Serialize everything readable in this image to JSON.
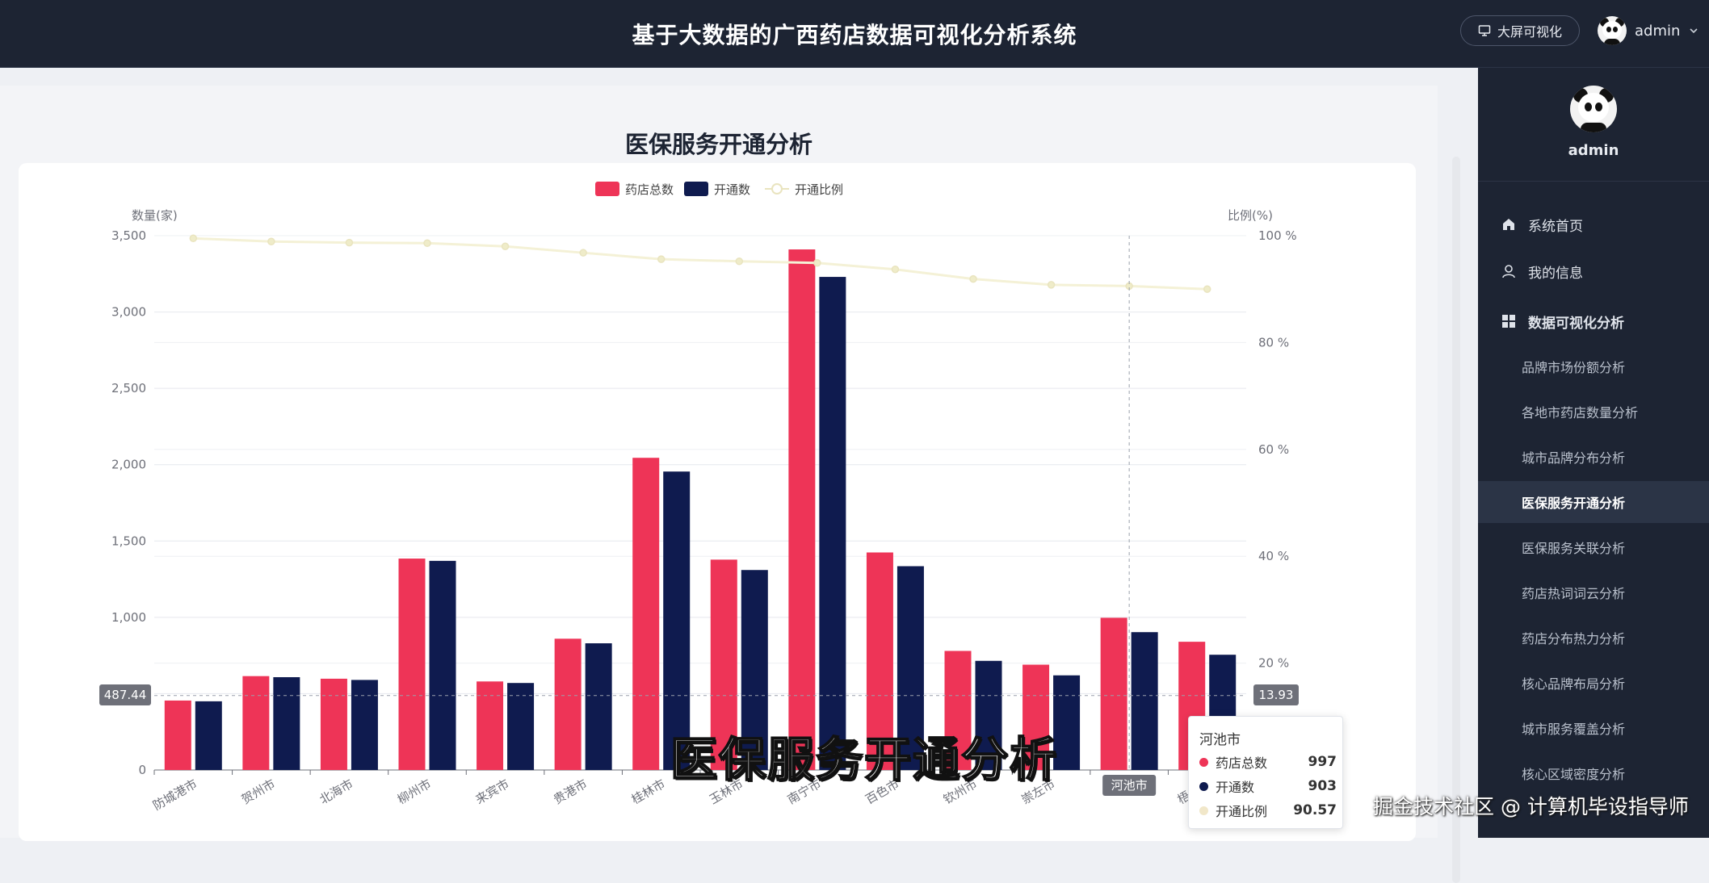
{
  "header": {
    "title": "基于大数据的广西药店数据可视化分析系统",
    "bigscreen_label": "大屏可视化",
    "username": "admin"
  },
  "sidebar": {
    "username": "admin",
    "menu": [
      {
        "label": "系统首页",
        "icon": "home-icon"
      },
      {
        "label": "我的信息",
        "icon": "user-icon"
      },
      {
        "label": "数据可视化分析",
        "icon": "grid-icon"
      }
    ],
    "submenu": [
      {
        "label": "品牌市场份额分析",
        "active": false
      },
      {
        "label": "各地市药店数量分析",
        "active": false
      },
      {
        "label": "城市品牌分布分析",
        "active": false
      },
      {
        "label": "医保服务开通分析",
        "active": true
      },
      {
        "label": "医保服务关联分析",
        "active": false
      },
      {
        "label": "药店热词词云分析",
        "active": false
      },
      {
        "label": "药店分布热力分析",
        "active": false
      },
      {
        "label": "核心品牌布局分析",
        "active": false
      },
      {
        "label": "城市服务覆盖分析",
        "active": false
      },
      {
        "label": "核心区域密度分析",
        "active": false
      }
    ]
  },
  "page": {
    "title": "医保服务开通分析"
  },
  "chart_data": {
    "type": "bar",
    "legend": [
      "药店总数",
      "开通数",
      "开通比例"
    ],
    "legend_position": "top-center",
    "ylabel_left": "数量(家)",
    "ylabel_right": "比例(%)",
    "ylim_left": [
      0,
      3500
    ],
    "ylim_right": [
      0,
      100
    ],
    "yticks_left": [
      "0",
      "500",
      "1,000",
      "1,500",
      "2,000",
      "2,500",
      "3,000",
      "3,500"
    ],
    "yticks_right": [
      "20 %",
      "40 %",
      "60 %",
      "80 %",
      "100 %"
    ],
    "categories": [
      "防城港市",
      "贺州市",
      "北海市",
      "柳州市",
      "来宾市",
      "贵港市",
      "桂林市",
      "玉林市",
      "南宁市",
      "百色市",
      "钦州市",
      "崇左市",
      "河池市",
      "梧州市"
    ],
    "series": [
      {
        "name": "药店总数",
        "type": "bar",
        "color": "#ee3457",
        "values": [
          455,
          615,
          598,
          1385,
          580,
          860,
          2045,
          1378,
          3410,
          1425,
          780,
          690,
          997,
          840
        ]
      },
      {
        "name": "开通数",
        "type": "bar",
        "color": "#0f1b4f",
        "values": [
          450,
          608,
          590,
          1370,
          570,
          830,
          1955,
          1310,
          3230,
          1335,
          715,
          620,
          903,
          755
        ]
      },
      {
        "name": "开通比例",
        "type": "line",
        "color": "#f4f1d6",
        "values": [
          99.5,
          98.9,
          98.7,
          98.6,
          98.0,
          96.8,
          95.6,
          95.2,
          94.9,
          93.7,
          91.9,
          90.8,
          90.57,
          90.0
        ]
      }
    ],
    "crosshair": {
      "left_label": "487.44",
      "right_label": "13.93",
      "category_label": "河池市"
    },
    "tooltip": {
      "title": "河池市",
      "rows": [
        {
          "name": "药店总数",
          "value": "997",
          "color": "#ee3457"
        },
        {
          "name": "开通数",
          "value": "903",
          "color": "#0f1b4f"
        },
        {
          "name": "开通比例",
          "value": "90.57",
          "color": "#f1e7c9"
        }
      ]
    }
  },
  "overlay": {
    "caption": "医保服务开通分析",
    "watermark": "掘金技术社区 @ 计算机毕设指导师"
  }
}
